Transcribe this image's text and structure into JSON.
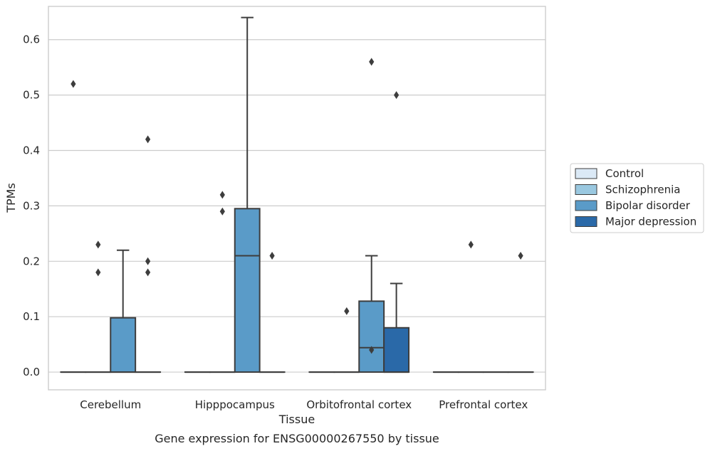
{
  "chart_data": {
    "type": "box",
    "caption": "Gene expression for ENSG00000267550 by tissue",
    "xlabel": "Tissue",
    "ylabel": "TPMs",
    "ylim": [
      -0.032,
      0.66
    ],
    "yticks": [
      "0.0",
      "0.1",
      "0.2",
      "0.3",
      "0.4",
      "0.5",
      "0.6"
    ],
    "grid": true,
    "legend_position": "right",
    "categories": [
      "Cerebellum",
      "Hipppocampus",
      "Orbitofrontal cortex",
      "Prefrontal cortex"
    ],
    "series": [
      {
        "name": "Control",
        "color": "#dbe9f6",
        "boxes": [
          {
            "q1": 0,
            "median": 0,
            "q3": 0,
            "whisker_low": 0,
            "whisker_high": 0,
            "outliers": [
              0.52
            ]
          },
          {
            "q1": 0,
            "median": 0,
            "q3": 0,
            "whisker_low": 0,
            "whisker_high": 0,
            "outliers": []
          },
          {
            "q1": 0,
            "median": 0,
            "q3": 0,
            "whisker_low": 0,
            "whisker_high": 0,
            "outliers": []
          },
          {
            "q1": 0,
            "median": 0,
            "q3": 0,
            "whisker_low": 0,
            "whisker_high": 0,
            "outliers": []
          }
        ]
      },
      {
        "name": "Schizophrenia",
        "color": "#9ac8e0",
        "boxes": [
          {
            "q1": 0,
            "median": 0,
            "q3": 0,
            "whisker_low": 0,
            "whisker_high": 0,
            "outliers": [
              0.23,
              0.18
            ]
          },
          {
            "q1": 0,
            "median": 0,
            "q3": 0,
            "whisker_low": 0,
            "whisker_high": 0,
            "outliers": [
              0.32,
              0.29
            ]
          },
          {
            "q1": 0,
            "median": 0,
            "q3": 0,
            "whisker_low": 0,
            "whisker_high": 0,
            "outliers": [
              0.11
            ]
          },
          {
            "q1": 0,
            "median": 0,
            "q3": 0,
            "whisker_low": 0,
            "whisker_high": 0,
            "outliers": [
              0.23
            ]
          }
        ]
      },
      {
        "name": "Bipolar disorder",
        "color": "#5a9bc8",
        "boxes": [
          {
            "q1": 0,
            "median": 0,
            "q3": 0.098,
            "whisker_low": 0,
            "whisker_high": 0.22,
            "outliers": []
          },
          {
            "q1": 0,
            "median": 0.21,
            "q3": 0.295,
            "whisker_low": 0,
            "whisker_high": 0.64,
            "outliers": []
          },
          {
            "q1": 0,
            "median": 0.044,
            "q3": 0.128,
            "whisker_low": 0,
            "whisker_high": 0.21,
            "outliers": [
              0.04,
              0.56
            ]
          },
          {
            "q1": 0,
            "median": 0,
            "q3": 0,
            "whisker_low": 0,
            "whisker_high": 0,
            "outliers": []
          }
        ]
      },
      {
        "name": "Major depression",
        "color": "#2a69a8",
        "boxes": [
          {
            "q1": 0,
            "median": 0,
            "q3": 0,
            "whisker_low": 0,
            "whisker_high": 0,
            "outliers": [
              0.42,
              0.2,
              0.18
            ]
          },
          {
            "q1": 0,
            "median": 0,
            "q3": 0,
            "whisker_low": 0,
            "whisker_high": 0,
            "outliers": [
              0.21
            ]
          },
          {
            "q1": 0,
            "median": 0,
            "q3": 0.08,
            "whisker_low": 0,
            "whisker_high": 0.16,
            "outliers": [
              0.5
            ]
          },
          {
            "q1": 0,
            "median": 0,
            "q3": 0,
            "whisker_low": 0,
            "whisker_high": 0,
            "outliers": [
              0.21
            ]
          }
        ]
      }
    ]
  }
}
